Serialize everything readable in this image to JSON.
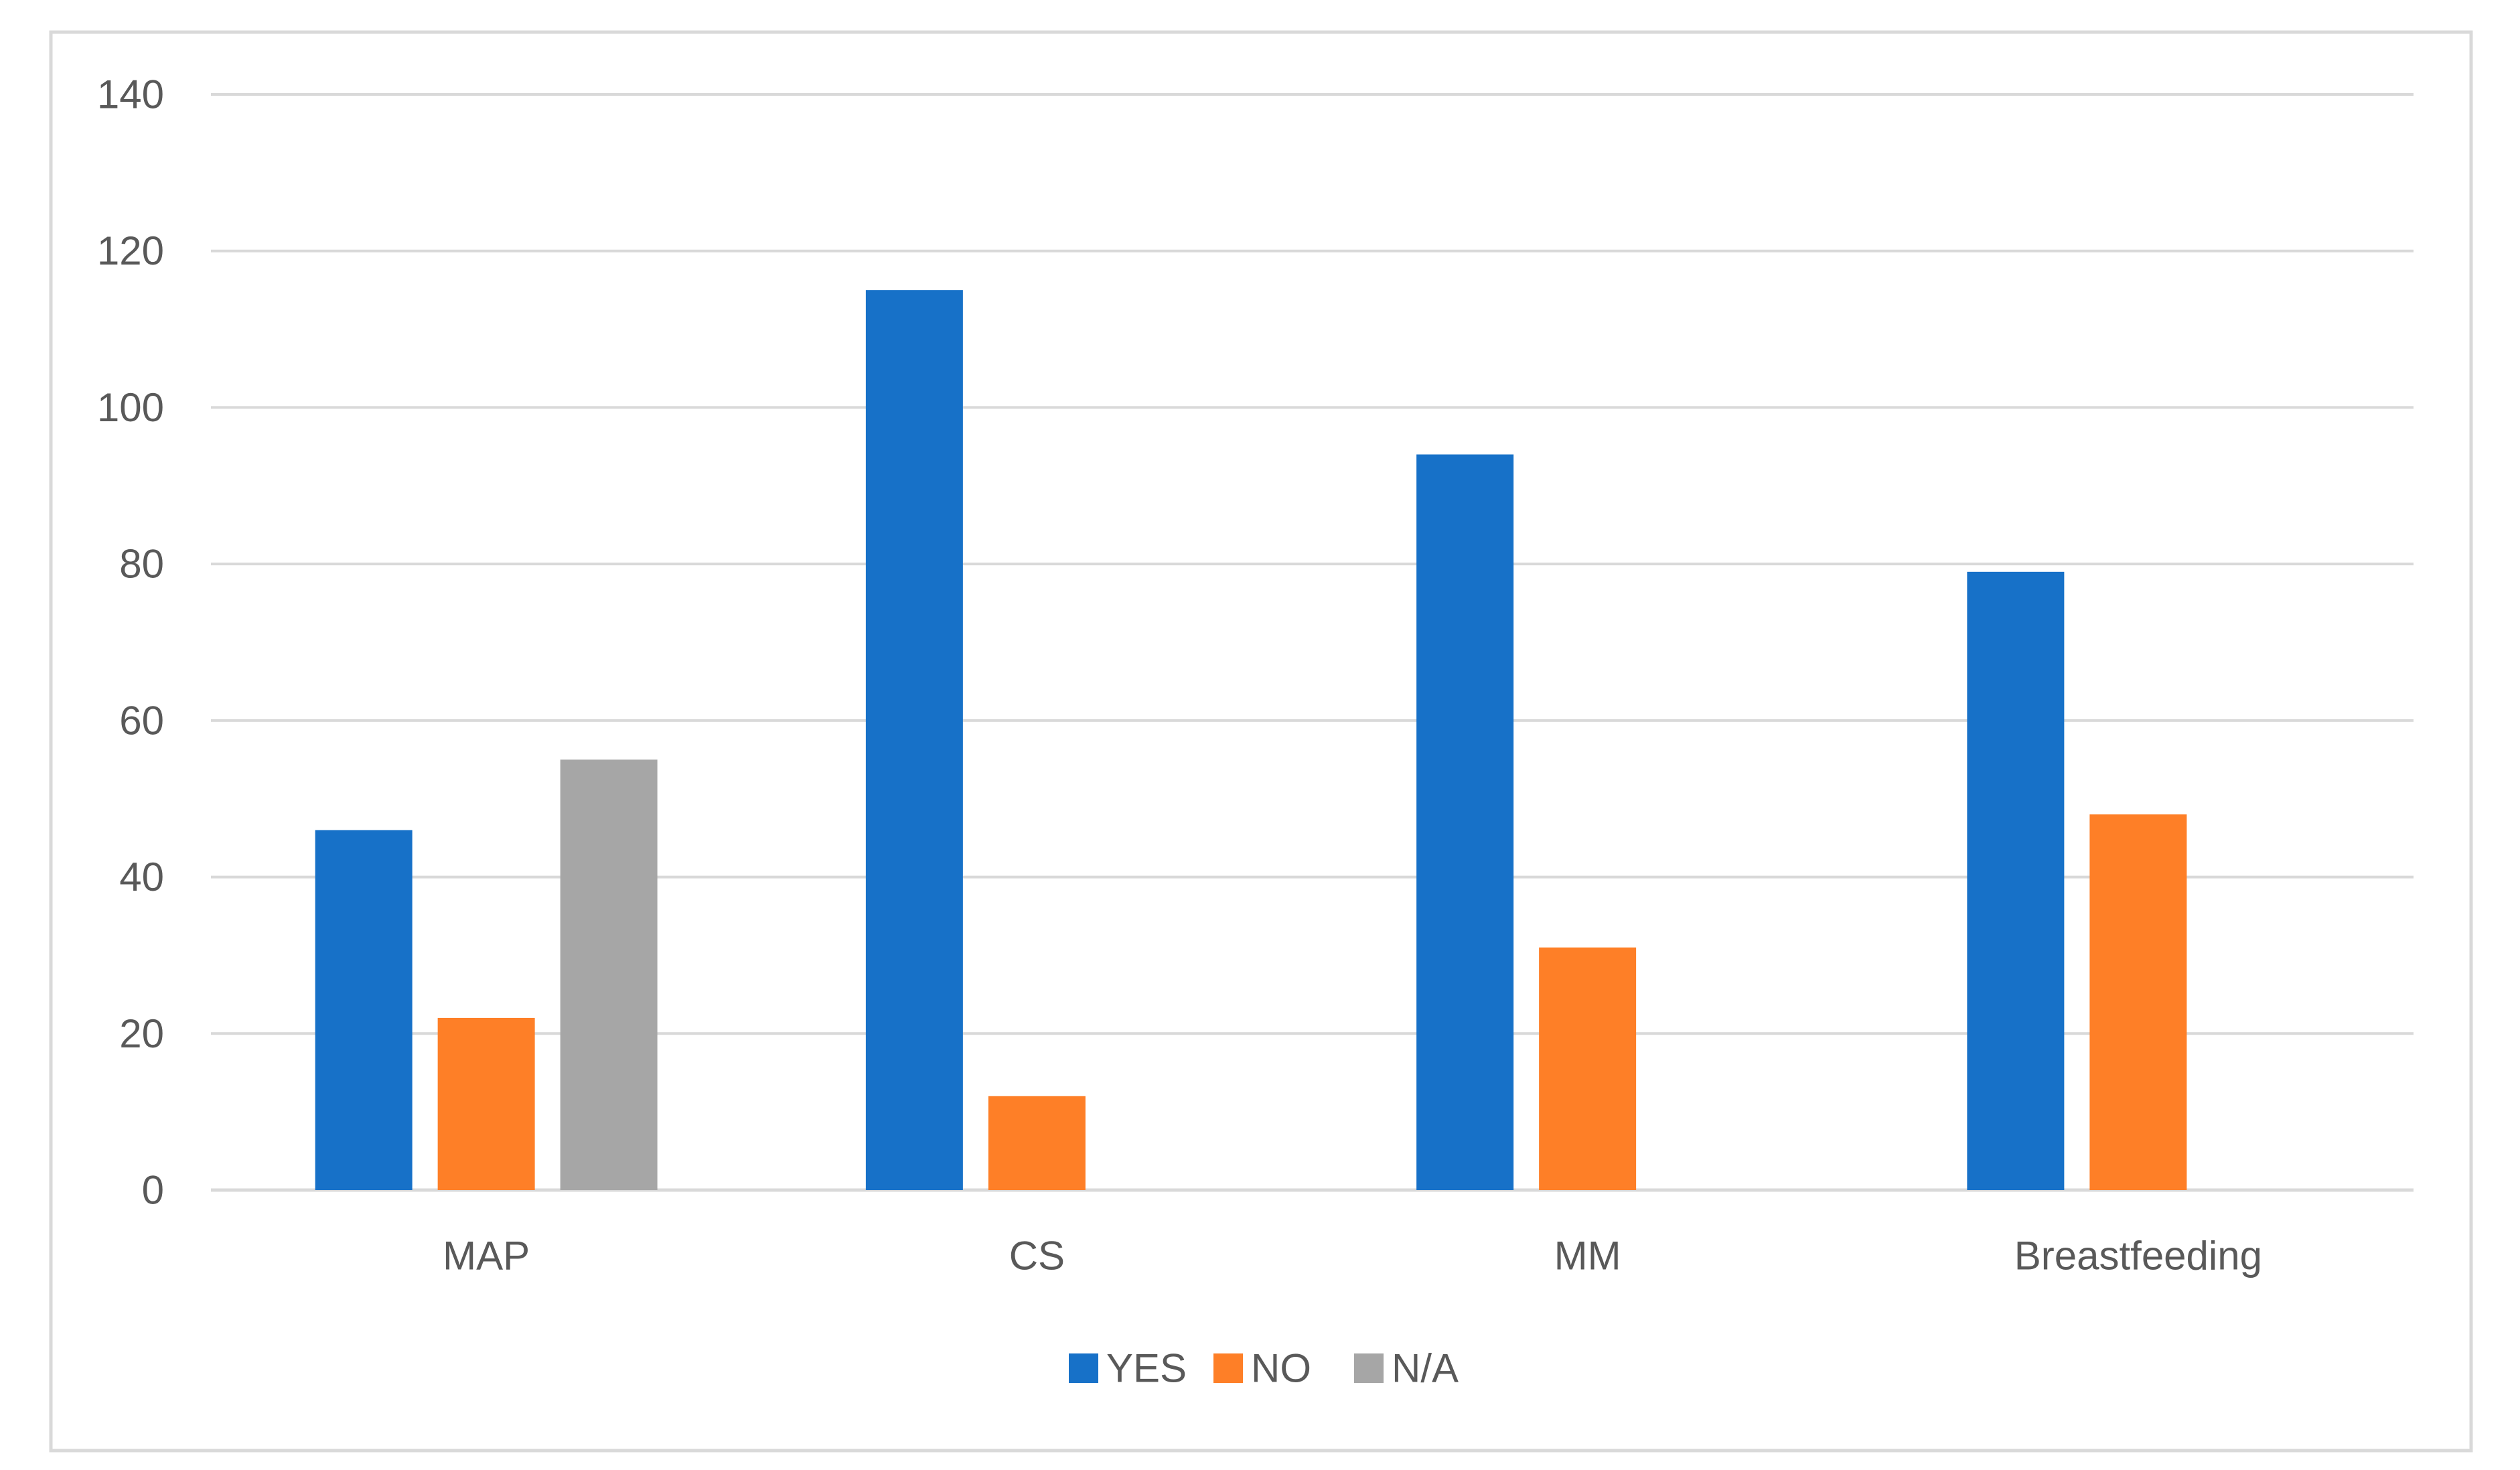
{
  "chart_data": {
    "type": "bar",
    "categories": [
      "MAP",
      "CS",
      "MM",
      "Breastfeeding"
    ],
    "series": [
      {
        "name": "YES",
        "values": [
          46,
          115,
          94,
          79
        ],
        "color": "#1771C8"
      },
      {
        "name": "NO",
        "values": [
          22,
          12,
          31,
          48
        ],
        "color": "#FE7F27"
      },
      {
        "name": "N/A",
        "values": [
          55,
          null,
          null,
          null
        ],
        "color": "#A6A6A6"
      }
    ],
    "ylim": [
      0,
      140
    ],
    "yticks": [
      0,
      20,
      40,
      60,
      80,
      100,
      120,
      140
    ],
    "ytick_labels": [
      "0",
      "20",
      "40",
      "60",
      "80",
      "100",
      "120",
      "140"
    ],
    "grid": true,
    "legend": "bottom-center",
    "colors": {
      "gridline": "#D9D9D9",
      "axis_text": "#595959",
      "border": "#D9D9D9"
    }
  }
}
